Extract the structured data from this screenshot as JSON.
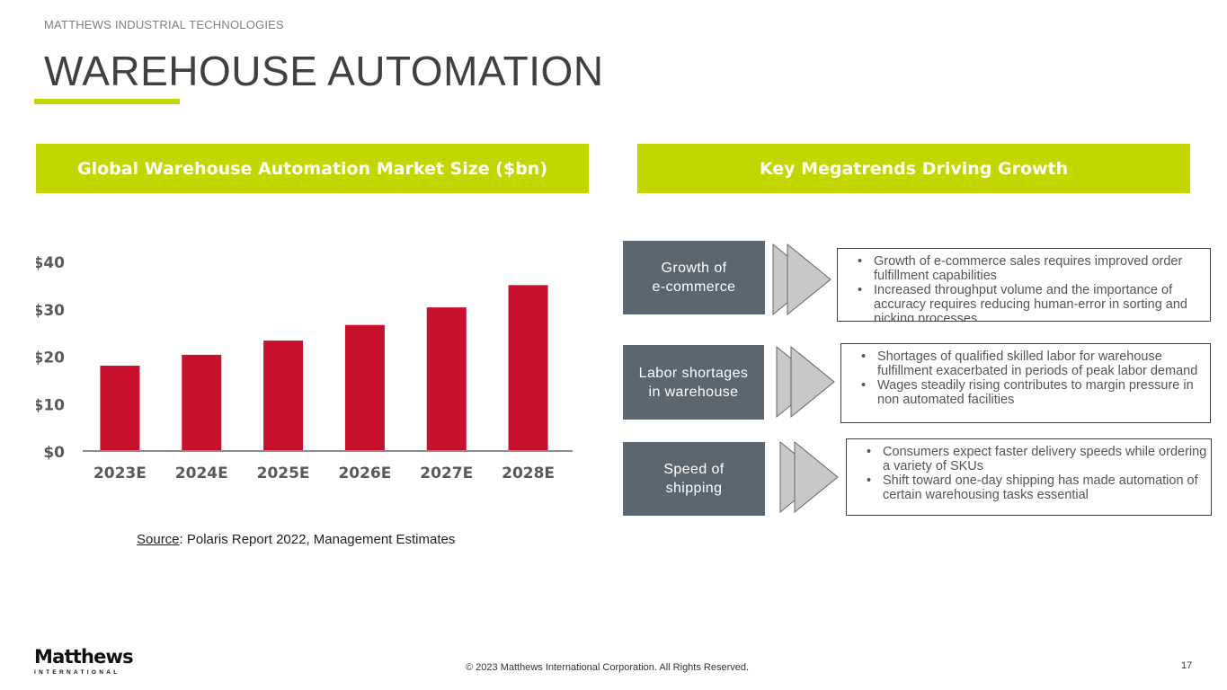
{
  "header": {
    "eyebrow": "MATTHEWS INDUSTRIAL TECHNOLOGIES",
    "title": "WAREHOUSE AUTOMATION"
  },
  "left_panel": {
    "heading": "Global Warehouse Automation Market Size ($bn)",
    "source_label": "Source",
    "source_text": ": Polaris Report 2022, Management Estimates"
  },
  "right_panel": {
    "heading": "Key Megatrends Driving Growth",
    "trends": [
      {
        "label_line1": "Growth of",
        "label_line2": "e-commerce",
        "bullets": [
          "Growth of e-commerce sales requires improved order fulfillment capabilities",
          "Increased throughput volume and the importance of accuracy requires reducing human-error in sorting and picking processes"
        ]
      },
      {
        "label_line1": "Labor shortages",
        "label_line2": "in warehouse",
        "bullets": [
          "Shortages of qualified skilled labor for warehouse fulfillment exacerbated in periods of peak labor demand",
          "Wages steadily rising contributes to margin pressure in non automated facilities"
        ]
      },
      {
        "label_line1": "Speed of",
        "label_line2": "shipping",
        "bullets": [
          "Consumers expect faster delivery speeds while ordering a variety of SKUs",
          "Shift toward one-day shipping has made automation of certain warehousing tasks essential"
        ]
      }
    ]
  },
  "chart_data": {
    "type": "bar",
    "categories": [
      "2023E",
      "2024E",
      "2025E",
      "2026E",
      "2027E",
      "2028E"
    ],
    "values": [
      18,
      20.3,
      23.3,
      26.6,
      30.3,
      35
    ],
    "ylim": [
      0,
      40
    ],
    "yticks": [
      0,
      10,
      20,
      30,
      40
    ],
    "ytick_labels": [
      "$0",
      "$10",
      "$20",
      "$30",
      "$40"
    ],
    "xlabel": "",
    "ylabel": "",
    "grid": false,
    "bar_color": "#c8102e"
  },
  "footer": {
    "logo_name": "Matthews",
    "logo_sub": "INTERNATIONAL",
    "copyright": "© 2023 Matthews International Corporation. All Rights Reserved.",
    "page_number": "17"
  },
  "colors": {
    "accent": "#c4d600",
    "trend_box": "#5a6670",
    "bar": "#c8102e"
  }
}
